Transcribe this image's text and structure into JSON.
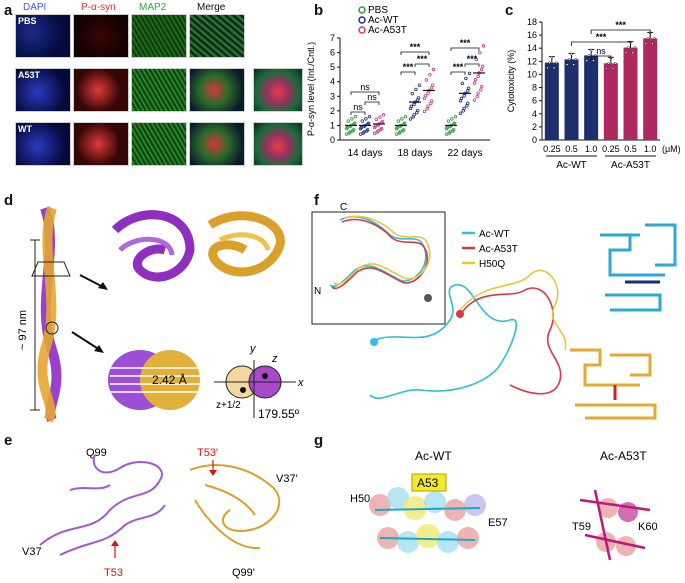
{
  "panel_a": {
    "letter": "a",
    "channels": [
      {
        "label": "DAPI",
        "color": "#3a5bd9"
      },
      {
        "label": "P-α-syn",
        "color": "#e03030"
      },
      {
        "label": "MAP2",
        "color": "#34a934"
      },
      {
        "label": "Merge",
        "color": "#111111"
      }
    ],
    "rows": [
      "PBS",
      "A53T",
      "WT"
    ]
  },
  "panel_b": {
    "letter": "b",
    "legend": [
      "PBS",
      "Ac-WT",
      "Ac-A53T"
    ],
    "ylabel": "P-α-syn level (Int./Cntl.)",
    "yticks": [
      "0",
      "1",
      "2",
      "3",
      "4",
      "5",
      "6",
      "7"
    ],
    "xgroups": [
      "14 days",
      "18 days",
      "22 days"
    ],
    "sig": [
      "ns",
      "ns",
      "ns",
      "***",
      "***",
      "***",
      "***",
      "***",
      "***"
    ]
  },
  "panel_c": {
    "letter": "c",
    "ylabel": "Cytotoxicity (%)",
    "yticks": [
      "0",
      "2",
      "4",
      "6",
      "8",
      "10",
      "12",
      "14",
      "16",
      "18"
    ],
    "xticks": [
      "0.25",
      "0.5",
      "1.0",
      "0.25",
      "0.5",
      "1.0"
    ],
    "unit": "(μM)",
    "groups": [
      "Ac-WT",
      "Ac-A53T"
    ],
    "sig": [
      "ns",
      "***",
      "***"
    ]
  },
  "panel_d": {
    "letter": "d",
    "length_label": "~ 97 nm",
    "rise_label": "2.42 Å",
    "twist_label": "179.55º",
    "axis_y": "y",
    "axis_x": "x",
    "axis_z": "z",
    "sub_label": "z+1/2"
  },
  "panel_e": {
    "letter": "e",
    "labels": [
      "Q99",
      "V37",
      "T53",
      "T53'",
      "V37'",
      "Q99'"
    ]
  },
  "panel_f": {
    "letter": "f",
    "legend": [
      {
        "label": "Ac-WT",
        "color": "#2ec0d6"
      },
      {
        "label": "Ac-A53T",
        "color": "#d9374a"
      },
      {
        "label": "H50Q",
        "color": "#e8c83a"
      }
    ],
    "inset_labels": [
      "C",
      "N"
    ]
  },
  "panel_g": {
    "letter": "g",
    "titles": [
      "Ac-WT",
      "Ac-A53T"
    ],
    "labels": [
      "H50",
      "A53",
      "E57",
      "T59",
      "K60"
    ]
  },
  "chart_data": [
    {
      "type": "scatter",
      "title": "",
      "ylabel": "P-α-syn level (Int./Cntl.)",
      "ylim": [
        0,
        7
      ],
      "categories": [
        "14 days",
        "18 days",
        "22 days"
      ],
      "series": [
        {
          "name": "PBS",
          "values": [
            1.0,
            1.0,
            1.0
          ]
        },
        {
          "name": "Ac-WT",
          "values": [
            1.0,
            2.6,
            3.2
          ]
        },
        {
          "name": "Ac-A53T",
          "values": [
            1.1,
            3.4,
            4.6
          ]
        }
      ]
    },
    {
      "type": "bar",
      "title": "",
      "ylabel": "Cytotoxicity (%)",
      "ylim": [
        0,
        18
      ],
      "categories": [
        "0.25",
        "0.5",
        "1.0",
        "0.25",
        "0.5",
        "1.0"
      ],
      "series": [
        {
          "name": "Ac-WT",
          "values": [
            11.8,
            12.3,
            12.9,
            null,
            null,
            null
          ]
        },
        {
          "name": "Ac-A53T",
          "values": [
            null,
            null,
            null,
            11.7,
            14.1,
            15.5
          ]
        }
      ]
    }
  ]
}
